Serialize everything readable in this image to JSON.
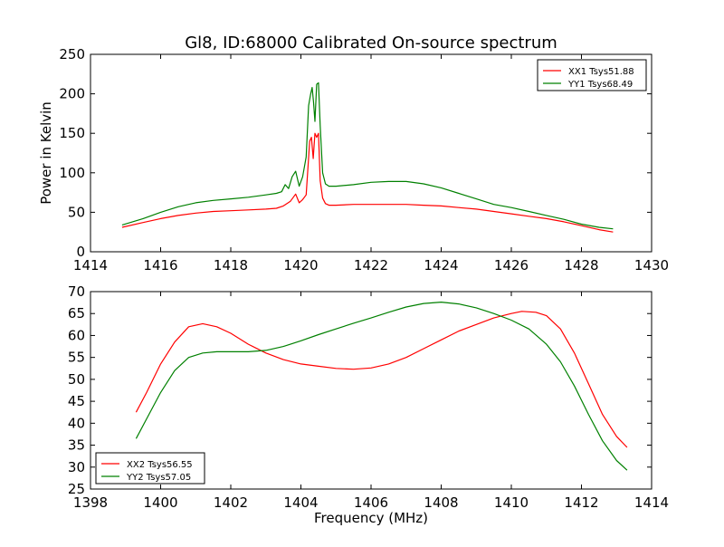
{
  "title": "Gl8, ID:68000 Calibrated On-source spectrum",
  "chart_data": [
    {
      "type": "line",
      "title": "Gl8, ID:68000 Calibrated On-source spectrum",
      "xlabel": "",
      "ylabel": "Power in Kelvin",
      "xlim": [
        1414,
        1430
      ],
      "ylim": [
        0,
        250
      ],
      "xticks": [
        "1414",
        "1416",
        "1418",
        "1420",
        "1422",
        "1424",
        "1426",
        "1428",
        "1430"
      ],
      "yticks": [
        "0",
        "50",
        "100",
        "150",
        "200",
        "250"
      ],
      "grid": false,
      "legend": "top-right",
      "series": [
        {
          "name": "XX1 Tsys51.88",
          "color": "#ff0000",
          "x": [
            1414.9,
            1415.5,
            1416.0,
            1416.5,
            1417.0,
            1417.5,
            1418.0,
            1418.5,
            1419.0,
            1419.3,
            1419.5,
            1419.7,
            1419.85,
            1419.95,
            1420.05,
            1420.15,
            1420.25,
            1420.3,
            1420.35,
            1420.4,
            1420.45,
            1420.5,
            1420.55,
            1420.62,
            1420.7,
            1420.8,
            1421.0,
            1421.5,
            1422.0,
            1422.5,
            1423.0,
            1423.5,
            1424.0,
            1424.5,
            1425.0,
            1425.5,
            1426.0,
            1426.5,
            1427.0,
            1427.5,
            1428.0,
            1428.5,
            1428.9
          ],
          "y": [
            31,
            37,
            42,
            46,
            49,
            51,
            52,
            53,
            54,
            55,
            58,
            64,
            73,
            62,
            66,
            72,
            140,
            145,
            118,
            150,
            145,
            150,
            90,
            68,
            61,
            59,
            59,
            60,
            60,
            60,
            60,
            59,
            58,
            56,
            54,
            51,
            48,
            45,
            42,
            38,
            33,
            28,
            25
          ]
        },
        {
          "name": "YY1 Tsys68.49",
          "color": "#008000",
          "x": [
            1414.9,
            1415.5,
            1416.0,
            1416.5,
            1417.0,
            1417.5,
            1418.0,
            1418.5,
            1419.0,
            1419.3,
            1419.45,
            1419.55,
            1419.65,
            1419.75,
            1419.85,
            1419.95,
            1420.05,
            1420.15,
            1420.22,
            1420.28,
            1420.32,
            1420.36,
            1420.4,
            1420.45,
            1420.5,
            1420.55,
            1420.62,
            1420.7,
            1420.8,
            1421.0,
            1421.5,
            1422.0,
            1422.5,
            1423.0,
            1423.5,
            1424.0,
            1424.5,
            1425.0,
            1425.5,
            1426.0,
            1426.5,
            1427.0,
            1427.5,
            1428.0,
            1428.5,
            1428.9
          ],
          "y": [
            34,
            42,
            50,
            57,
            62,
            65,
            67,
            69,
            72,
            74,
            76,
            85,
            80,
            95,
            102,
            83,
            95,
            120,
            185,
            200,
            208,
            190,
            165,
            212,
            214,
            160,
            100,
            86,
            83,
            83,
            85,
            88,
            89,
            89,
            86,
            81,
            74,
            67,
            60,
            56,
            51,
            46,
            41,
            35,
            31,
            29
          ]
        }
      ]
    },
    {
      "type": "line",
      "title": "",
      "xlabel": "Frequency (MHz)",
      "ylabel": "",
      "xlim": [
        1398,
        1414
      ],
      "ylim": [
        25,
        70
      ],
      "xticks": [
        "1398",
        "1400",
        "1402",
        "1404",
        "1406",
        "1408",
        "1410",
        "1412",
        "1414"
      ],
      "yticks": [
        "25",
        "30",
        "35",
        "40",
        "45",
        "50",
        "55",
        "60",
        "65",
        "70"
      ],
      "grid": false,
      "legend": "bottom-left",
      "series": [
        {
          "name": "XX2 Tsys56.55",
          "color": "#ff0000",
          "x": [
            1399.3,
            1399.6,
            1400.0,
            1400.4,
            1400.8,
            1401.2,
            1401.6,
            1402.0,
            1402.5,
            1403.0,
            1403.5,
            1404.0,
            1404.5,
            1405.0,
            1405.5,
            1406.0,
            1406.5,
            1407.0,
            1407.5,
            1408.0,
            1408.5,
            1409.0,
            1409.5,
            1410.0,
            1410.3,
            1410.7,
            1411.0,
            1411.4,
            1411.8,
            1412.2,
            1412.6,
            1413.0,
            1413.3
          ],
          "y": [
            42.5,
            47,
            53.5,
            58.5,
            62,
            62.7,
            62,
            60.5,
            58,
            56,
            54.5,
            53.5,
            53,
            52.5,
            52.3,
            52.6,
            53.5,
            55,
            57,
            59,
            61,
            62.5,
            64,
            65,
            65.5,
            65.3,
            64.5,
            61.5,
            56,
            49,
            42,
            37,
            34.5
          ]
        },
        {
          "name": "YY2 Tsys57.05",
          "color": "#008000",
          "x": [
            1399.3,
            1399.6,
            1400.0,
            1400.4,
            1400.8,
            1401.2,
            1401.6,
            1402.0,
            1402.5,
            1403.0,
            1403.5,
            1404.0,
            1404.5,
            1405.0,
            1405.5,
            1406.0,
            1406.5,
            1407.0,
            1407.5,
            1408.0,
            1408.5,
            1409.0,
            1409.5,
            1410.0,
            1410.5,
            1411.0,
            1411.4,
            1411.8,
            1412.2,
            1412.6,
            1413.0,
            1413.3
          ],
          "y": [
            36.5,
            41,
            47,
            52,
            55,
            56,
            56.3,
            56.3,
            56.3,
            56.6,
            57.5,
            58.8,
            60.2,
            61.5,
            62.8,
            64,
            65.3,
            66.5,
            67.3,
            67.6,
            67.2,
            66.3,
            65,
            63.5,
            61.5,
            58,
            54,
            48.5,
            42,
            36,
            31.5,
            29.3
          ]
        }
      ]
    }
  ]
}
